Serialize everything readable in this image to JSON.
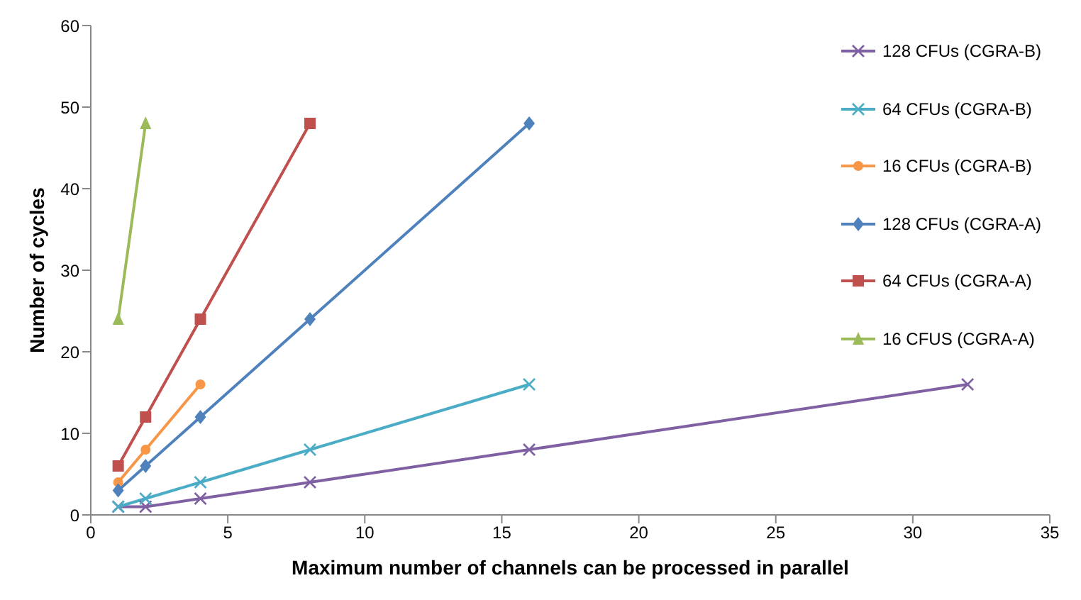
{
  "chart_data": {
    "type": "line",
    "xlabel": "Maximum number of channels can be processed in parallel",
    "ylabel": "Number of cycles",
    "xlim": [
      0,
      35
    ],
    "xticks": [
      0,
      5,
      10,
      15,
      20,
      25,
      30,
      35
    ],
    "ylim": [
      0,
      60
    ],
    "yticks": [
      0,
      10,
      20,
      30,
      40,
      50,
      60
    ],
    "legend": "right",
    "line_style": "solid",
    "series": [
      {
        "name": "128 CFUs (CGRA-B)",
        "color": "#7f60a2",
        "marker": "cross",
        "x": [
          1,
          2,
          4,
          8,
          16,
          32
        ],
        "values": [
          1,
          1,
          2,
          4,
          8,
          16
        ]
      },
      {
        "name": "64 CFUs (CGRA-B)",
        "color": "#4bacc6",
        "marker": "cross",
        "x": [
          1,
          2,
          4,
          8,
          16
        ],
        "values": [
          1,
          2,
          4,
          8,
          16
        ]
      },
      {
        "name": "16 CFUs (CGRA-B)",
        "color": "#f79646",
        "marker": "circle",
        "x": [
          1,
          2,
          4
        ],
        "values": [
          4,
          8,
          16
        ]
      },
      {
        "name": "128 CFUs (CGRA-A)",
        "color": "#4f81bd",
        "marker": "diamond",
        "x": [
          1,
          2,
          4,
          8,
          16
        ],
        "values": [
          3,
          6,
          12,
          24,
          48
        ]
      },
      {
        "name": "64 CFUs (CGRA-A)",
        "color": "#c0504d",
        "marker": "square",
        "x": [
          1,
          2,
          4,
          8
        ],
        "values": [
          6,
          12,
          24,
          48
        ]
      },
      {
        "name": "16 CFUS (CGRA-A)",
        "color": "#9bbb59",
        "marker": "triangle",
        "x": [
          1,
          2
        ],
        "values": [
          24,
          48
        ]
      }
    ]
  }
}
